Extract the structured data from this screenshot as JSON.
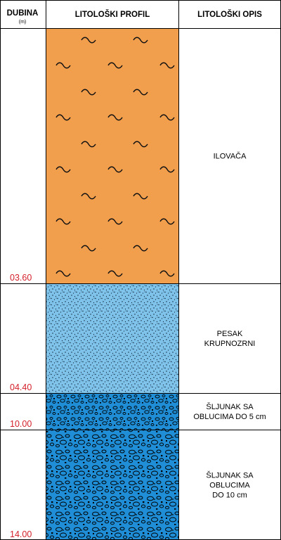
{
  "header": {
    "depth_title": "DUBINA",
    "depth_unit": "(m)",
    "profile_title": "LITOLOŠKI PROFIL",
    "description_title": "LITOLOŠKI OPIS"
  },
  "layers": [
    {
      "depth_bottom_label": "03.60",
      "depth_bottom_m": 3.6,
      "description_lines": [
        "ILOVAČA"
      ],
      "fill_color": "#F19E4D",
      "pattern": "wavy-tilde"
    },
    {
      "depth_bottom_label": "04.40",
      "depth_bottom_m": 4.4,
      "description_lines": [
        "PESAK",
        "KRUPNOZRNI"
      ],
      "fill_color": "#7FC3EB",
      "pattern": "fine-dots"
    },
    {
      "depth_bottom_label": "10.00",
      "depth_bottom_m": 10.0,
      "description_lines": [
        "ŠLJUNAK SA",
        "OBLUCIMA DO 5 cm"
      ],
      "fill_color": "#1F8ED6",
      "pattern": "small-pebbles"
    },
    {
      "depth_bottom_label": "14.00",
      "depth_bottom_m": 14.0,
      "description_lines": [
        "ŠLJUNAK SA",
        "OBLUCIMA",
        "DO 10 cm"
      ],
      "fill_color": "#1F8ED6",
      "pattern": "large-pebbles"
    }
  ],
  "colors": {
    "depth_label": "#D4202A",
    "grid": "#000000"
  }
}
